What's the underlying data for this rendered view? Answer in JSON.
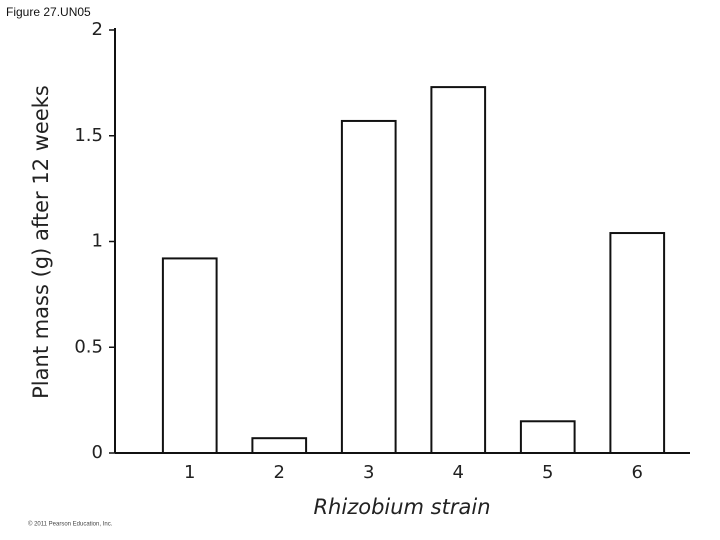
{
  "chart_data": {
    "type": "bar",
    "figure_label": "Figure 27.UN05",
    "copyright": "© 2011 Pearson Education, Inc.",
    "ylabel": "Plant mass (g) after 12 weeks",
    "xlabel": "Rhizobium strain",
    "categories": [
      "1",
      "2",
      "3",
      "4",
      "5",
      "6"
    ],
    "values": [
      0.92,
      0.07,
      1.57,
      1.73,
      0.15,
      1.04
    ],
    "color": "#ffffff",
    "ylim": [
      0,
      2
    ],
    "yticks": [
      0,
      0.5,
      1,
      1.5,
      2
    ],
    "grid": false
  }
}
